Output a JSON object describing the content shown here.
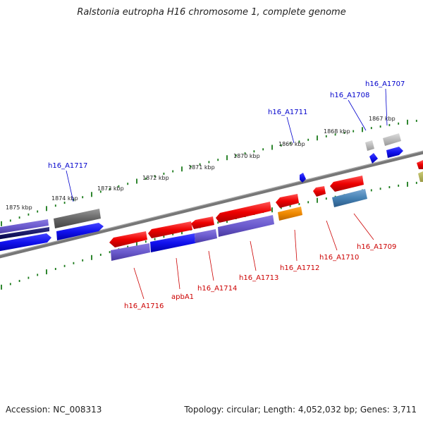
{
  "title": "Ralstonia eutropha H16 chromosome 1, complete genome",
  "footer": {
    "accession": "Accession: NC_008313",
    "topology": "Topology: circular; Length: 4,052,032 bp; Genes: 3,711"
  },
  "ruler_labels": [
    "1875 kbp",
    "1874 kbp",
    "1873 kbp",
    "1872 kbp",
    "1871 kbp",
    "1870 kbp",
    "1869 kbp",
    "1868 kbp",
    "1867 kbp"
  ],
  "gene_labels_top": [
    "h16_A1717",
    "h16_A1711",
    "h16_A1708",
    "h16_A1707"
  ],
  "gene_labels_bottom": [
    "h16_A1716",
    "apbA1",
    "h16_A1714",
    "h16_A1713",
    "h16_A1712",
    "h16_A1710",
    "h16_A1709"
  ],
  "colors": {
    "backbone": "#777777",
    "tick": "#1a7a1a",
    "red": "#ee1111",
    "blue": "#1111ee",
    "purple": "#6a5acd",
    "gray": "#666666",
    "orange": "#ee8800",
    "steel": "#4682b4",
    "label_top": "#0000cc",
    "label_bottom": "#cc0000"
  }
}
